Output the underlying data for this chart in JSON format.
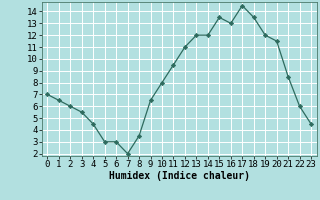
{
  "x": [
    0,
    1,
    2,
    3,
    4,
    5,
    6,
    7,
    8,
    9,
    10,
    11,
    12,
    13,
    14,
    15,
    16,
    17,
    18,
    19,
    20,
    21,
    22,
    23
  ],
  "y": [
    7.0,
    6.5,
    6.0,
    5.5,
    4.5,
    3.0,
    3.0,
    2.0,
    3.5,
    6.5,
    8.0,
    9.5,
    11.0,
    12.0,
    12.0,
    13.5,
    13.0,
    14.5,
    13.5,
    12.0,
    11.5,
    8.5,
    6.0,
    4.5
  ],
  "line_color": "#2e6b5e",
  "marker": "D",
  "marker_size": 2.2,
  "bg_color": "#b2e0e0",
  "grid_color": "#ffffff",
  "xlabel": "Humidex (Indice chaleur)",
  "xlabel_fontsize": 7,
  "tick_fontsize": 6.5,
  "ylim": [
    1.8,
    14.8
  ],
  "xlim": [
    -0.5,
    23.5
  ],
  "yticks": [
    2,
    3,
    4,
    5,
    6,
    7,
    8,
    9,
    10,
    11,
    12,
    13,
    14
  ],
  "xticks": [
    0,
    1,
    2,
    3,
    4,
    5,
    6,
    7,
    8,
    9,
    10,
    11,
    12,
    13,
    14,
    15,
    16,
    17,
    18,
    19,
    20,
    21,
    22,
    23
  ]
}
